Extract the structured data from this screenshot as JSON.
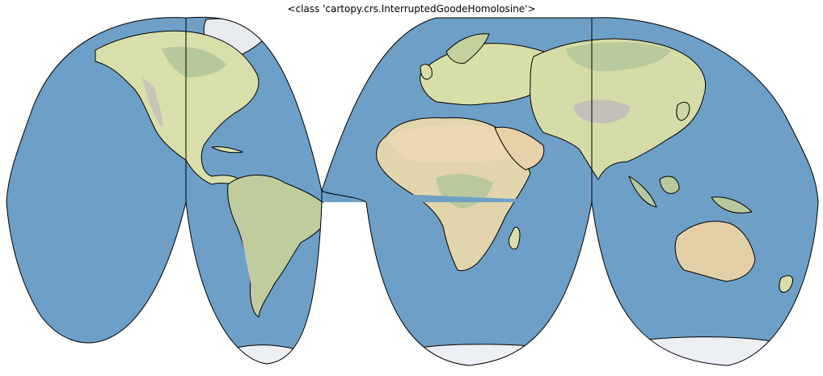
{
  "figure": {
    "title": "<class 'cartopy.crs.InterruptedGoodeHomolosine'>"
  },
  "map": {
    "projection": "Interrupted Goode Homolosine",
    "features": [
      "stock-image relief",
      "coastlines"
    ],
    "colors": {
      "ocean": "#6e9fc6",
      "land": "#dfe2b0",
      "land_dry": "#e6d4ad",
      "land_forest": "#b5c59a",
      "mountain": "#c7c2bb",
      "ice": "#eceff4",
      "coastline": "#000000"
    }
  }
}
